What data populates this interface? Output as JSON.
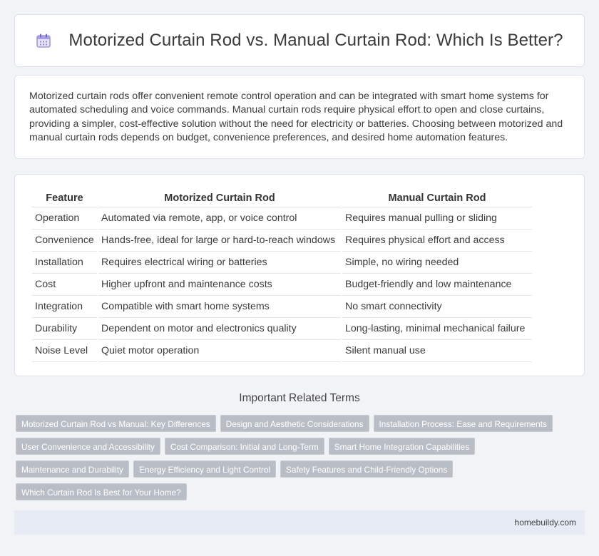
{
  "header": {
    "title": "Motorized Curtain Rod vs. Manual Curtain Rod: Which Is Better?",
    "icon": "calendar-icon"
  },
  "intro": {
    "text": "Motorized curtain rods offer convenient remote control operation and can be integrated with smart home systems for automated scheduling and voice commands. Manual curtain rods require physical effort to open and close curtains, providing a simpler, cost-effective solution without the need for electricity or batteries. Choosing between motorized and manual curtain rods depends on budget, convenience preferences, and desired home automation features."
  },
  "table": {
    "headers": [
      "Feature",
      "Motorized Curtain Rod",
      "Manual Curtain Rod"
    ],
    "rows": [
      [
        "Operation",
        "Automated via remote, app, or voice control",
        "Requires manual pulling or sliding"
      ],
      [
        "Convenience",
        "Hands-free, ideal for large or hard-to-reach windows",
        "Requires physical effort and access"
      ],
      [
        "Installation",
        "Requires electrical wiring or batteries",
        "Simple, no wiring needed"
      ],
      [
        "Cost",
        "Higher upfront and maintenance costs",
        "Budget-friendly and low maintenance"
      ],
      [
        "Integration",
        "Compatible with smart home systems",
        "No smart connectivity"
      ],
      [
        "Durability",
        "Dependent on motor and electronics quality",
        "Long-lasting, minimal mechanical failure"
      ],
      [
        "Noise Level",
        "Quiet motor operation",
        "Silent manual use"
      ]
    ]
  },
  "related": {
    "title": "Important Related Terms",
    "tags": [
      "Motorized Curtain Rod vs Manual: Key Differences",
      "Design and Aesthetic Considerations",
      "Installation Process: Ease and Requirements",
      "User Convenience and Accessibility",
      "Cost Comparison: Initial and Long-Term",
      "Smart Home Integration Capabilities",
      "Maintenance and Durability",
      "Energy Efficiency and Light Control",
      "Safety Features and Child-Friendly Options",
      "Which Curtain Rod Is Best for Your Home?"
    ]
  },
  "footer": {
    "site": "homebuildy.com"
  },
  "colors": {
    "background": "#f1f3f7",
    "tag": "#b9bec6",
    "footer": "#e6ebf5"
  }
}
